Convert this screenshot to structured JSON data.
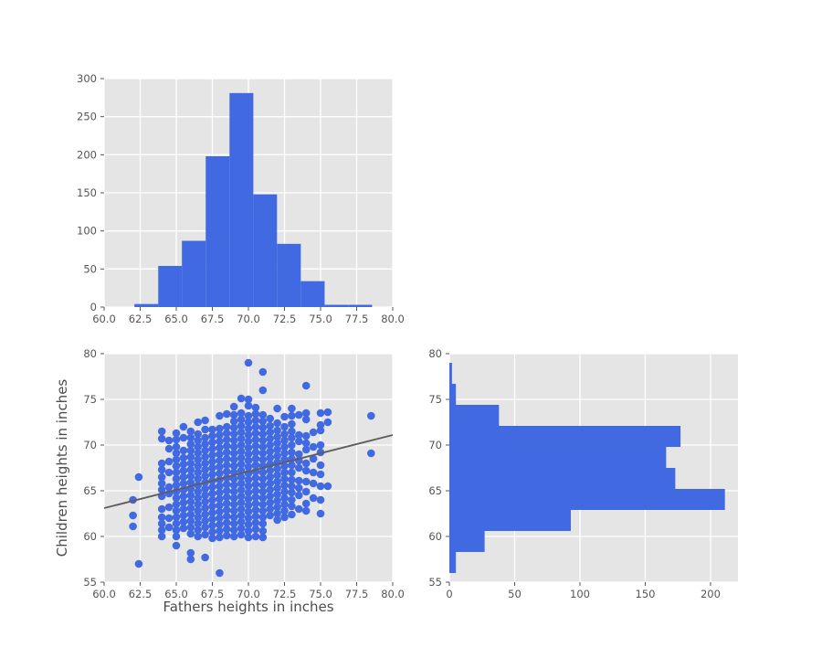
{
  "figure": {
    "background": "#ffffff",
    "axes_bg": "#e5e5e5",
    "grid_color": "#ffffff",
    "tick_color": "#555555",
    "label_color": "#4d4d4d",
    "accent_blue": "#4169e1",
    "line_gray": "#5e5e5e"
  },
  "chart_data": [
    {
      "id": "fathers-histogram",
      "type": "bar",
      "orientation": "vertical",
      "title": "",
      "xlabel": "",
      "ylabel": "",
      "xlim": [
        60,
        80
      ],
      "ylim": [
        0,
        300
      ],
      "xticks": [
        60,
        62.5,
        65,
        67.5,
        70,
        72.5,
        75,
        77.5,
        80
      ],
      "xtick_labels": [
        "60.0",
        "62.5",
        "65.0",
        "67.5",
        "70.0",
        "72.5",
        "75.0",
        "77.5",
        "80.0"
      ],
      "yticks": [
        0,
        50,
        100,
        150,
        200,
        250,
        300
      ],
      "ytick_labels": [
        "0",
        "50",
        "100",
        "150",
        "200",
        "250",
        "300"
      ],
      "bin_edges": [
        62.1,
        63.75,
        65.39,
        67.04,
        68.69,
        70.34,
        71.98,
        73.63,
        75.28,
        76.92,
        78.57
      ],
      "values": [
        4,
        54,
        87,
        198,
        281,
        148,
        83,
        34,
        3,
        3
      ],
      "grid": true
    },
    {
      "id": "fathers-children-scatter",
      "type": "scatter",
      "title": "",
      "xlabel": "Fathers heights in inches",
      "ylabel": "Children heights in inches",
      "xlim": [
        60,
        80
      ],
      "ylim": [
        55,
        80
      ],
      "xticks": [
        60,
        62.5,
        65,
        67.5,
        70,
        72.5,
        75,
        77.5,
        80
      ],
      "xtick_labels": [
        "60.0",
        "62.5",
        "65.0",
        "67.5",
        "70.0",
        "72.5",
        "75.0",
        "77.5",
        "80.0"
      ],
      "yticks": [
        55,
        60,
        65,
        70,
        75,
        80
      ],
      "ytick_labels": [
        "55",
        "60",
        "65",
        "70",
        "75",
        "80"
      ],
      "regression_line": {
        "x1": 60,
        "y1": 63.1,
        "x2": 80,
        "y2": 71.1
      },
      "grid": true,
      "columns": [
        {
          "x": 62,
          "ys": [
            61.1,
            62.3,
            64
          ]
        },
        {
          "x": 62.4,
          "ys": [
            57,
            66.5
          ]
        },
        {
          "x": 64,
          "ys": [
            60,
            60.7,
            61.4,
            62.1,
            63,
            64.4,
            65.1,
            65.8,
            66.5,
            67.3,
            68,
            70.7,
            71.5
          ]
        },
        {
          "x": 64.5,
          "ys": [
            61,
            62,
            63.2,
            64.7,
            65.4,
            67,
            68.2,
            69.6,
            70.5
          ]
        },
        {
          "x": 65,
          "ys": [
            59,
            60,
            60.7,
            61.4,
            62.1,
            62.8,
            63.5,
            64.2,
            64.9,
            65.6,
            66.3,
            67,
            67.7,
            68.4,
            69.1,
            69.8,
            70.6,
            71.3
          ]
        },
        {
          "x": 65.5,
          "ys": [
            60.9,
            61.6,
            62.3,
            63,
            63.7,
            64.4,
            65.1,
            65.8,
            66.5,
            67.2,
            67.9,
            68.6,
            69.4,
            70.8,
            72
          ]
        },
        {
          "x": 66,
          "ys": [
            57.5,
            58.2,
            60.3,
            61,
            61.7,
            62.4,
            63.1,
            63.8,
            64.5,
            65.2,
            65.9,
            66.6,
            67.3,
            68,
            68.7,
            69.4,
            70.1,
            70.8,
            71.5
          ]
        },
        {
          "x": 66.5,
          "ys": [
            60,
            60.7,
            61.4,
            62.1,
            62.8,
            63.5,
            64.2,
            64.9,
            65.6,
            66.3,
            67,
            67.7,
            68.4,
            69.1,
            69.8,
            70.5,
            71.2,
            72.5
          ]
        },
        {
          "x": 67,
          "ys": [
            57.7,
            60.2,
            61,
            61.7,
            62.4,
            63.1,
            63.8,
            64.5,
            65.2,
            65.9,
            66.6,
            67.3,
            68,
            68.7,
            69.4,
            70.1,
            70.8,
            71.7,
            72.7
          ]
        },
        {
          "x": 67.5,
          "ys": [
            59.8,
            60.5,
            61.2,
            61.9,
            62.6,
            63.3,
            64,
            64.7,
            65.4,
            66.1,
            66.8,
            67.5,
            68.2,
            68.9,
            69.6,
            70.3,
            71,
            71.7
          ]
        },
        {
          "x": 68,
          "ys": [
            56,
            59.9,
            60.6,
            61.3,
            62,
            62.7,
            63.4,
            64.1,
            64.8,
            65.5,
            66.2,
            66.9,
            67.6,
            68.3,
            69,
            69.7,
            70.4,
            71.1,
            71.8,
            73.2
          ]
        },
        {
          "x": 68.5,
          "ys": [
            60.1,
            60.8,
            61.5,
            62.2,
            62.9,
            63.6,
            64.3,
            65,
            65.7,
            66.4,
            67.1,
            67.8,
            68.5,
            69.2,
            69.9,
            70.6,
            71.3,
            72,
            73.4
          ]
        },
        {
          "x": 69,
          "ys": [
            60,
            60.7,
            61.4,
            62.1,
            62.8,
            63.5,
            64.2,
            64.9,
            65.6,
            66.3,
            67,
            67.7,
            68.4,
            69.1,
            69.8,
            70.5,
            71.2,
            71.9,
            72.6,
            73.3,
            74.2
          ]
        },
        {
          "x": 69.5,
          "ys": [
            60.2,
            60.9,
            61.6,
            62.3,
            63,
            63.7,
            64.4,
            65.1,
            65.8,
            66.5,
            67.2,
            67.9,
            68.6,
            69.3,
            70,
            70.7,
            71.4,
            72.1,
            72.8,
            73.5,
            75.1
          ]
        },
        {
          "x": 70,
          "ys": [
            59.9,
            60.6,
            61.3,
            62,
            62.7,
            63.4,
            64.1,
            64.8,
            65.5,
            66.2,
            66.9,
            67.6,
            68.3,
            69,
            69.7,
            70.4,
            71.1,
            71.8,
            72.5,
            73.2,
            74.3,
            75,
            79
          ]
        },
        {
          "x": 70.5,
          "ys": [
            60,
            60.8,
            61.5,
            62.2,
            62.9,
            63.6,
            64.3,
            65,
            65.7,
            66.4,
            67.1,
            67.8,
            68.5,
            69.2,
            69.9,
            70.6,
            71.3,
            72,
            72.7,
            73.4,
            74.1
          ]
        },
        {
          "x": 71,
          "ys": [
            59.9,
            60.6,
            61.4,
            62.1,
            62.8,
            63.5,
            64.2,
            64.9,
            65.6,
            66.3,
            67,
            67.7,
            68.4,
            69.1,
            69.8,
            70.5,
            71.2,
            71.9,
            72.6,
            73.3,
            76,
            78
          ]
        },
        {
          "x": 71.5,
          "ys": [
            62.3,
            63,
            63.7,
            64.4,
            65.1,
            65.8,
            66.5,
            67.2,
            67.9,
            68.6,
            69.3,
            70,
            70.7,
            71.4,
            72.1,
            72.9
          ]
        },
        {
          "x": 72,
          "ys": [
            61.8,
            62.5,
            63.2,
            63.9,
            64.6,
            65.3,
            66,
            66.7,
            67.4,
            68.1,
            68.8,
            69.5,
            70.2,
            70.9,
            71.6,
            72.4,
            74
          ]
        },
        {
          "x": 72.5,
          "ys": [
            62.1,
            62.8,
            63.5,
            64.2,
            64.9,
            65.6,
            66.3,
            67,
            67.7,
            68.4,
            69.1,
            69.8,
            70.5,
            71.2,
            72,
            73.1
          ]
        },
        {
          "x": 73,
          "ys": [
            62.4,
            63.3,
            64,
            64.8,
            65.5,
            66.2,
            67,
            67.8,
            68.5,
            69.2,
            70,
            70.8,
            71.5,
            72.3,
            73.2,
            74
          ]
        },
        {
          "x": 73.5,
          "ys": [
            63,
            64.5,
            65.3,
            66.1,
            67.5,
            68.3,
            69,
            70.4,
            71.1,
            73.3
          ]
        },
        {
          "x": 74,
          "ys": [
            62.8,
            63.6,
            64.9,
            66,
            67.2,
            68,
            69.5,
            70.2,
            71,
            72.8,
            73.5,
            76.5
          ]
        },
        {
          "x": 74.5,
          "ys": [
            64.2,
            65.8,
            67,
            68.5,
            69.8,
            71.4
          ]
        },
        {
          "x": 75,
          "ys": [
            62.5,
            64,
            65.5,
            66.8,
            67.8,
            69.2,
            70,
            71.6,
            72.2,
            73.5
          ]
        },
        {
          "x": 75.5,
          "ys": [
            65.5,
            72.5,
            73.6
          ]
        },
        {
          "x": 78.5,
          "ys": [
            69.1,
            73.2
          ]
        }
      ]
    },
    {
      "id": "children-histogram",
      "type": "bar",
      "orientation": "horizontal",
      "title": "",
      "xlabel": "",
      "ylabel": "",
      "xlim": [
        0,
        221
      ],
      "ylim": [
        55,
        80
      ],
      "xticks": [
        0,
        50,
        100,
        150,
        200
      ],
      "xtick_labels": [
        "0",
        "50",
        "100",
        "150",
        "200"
      ],
      "yticks": [
        55,
        60,
        65,
        70,
        75,
        80
      ],
      "ytick_labels": [
        "55",
        "60",
        "65",
        "70",
        "75",
        "80"
      ],
      "bin_edges": [
        56.0,
        58.3,
        60.6,
        62.9,
        65.2,
        67.5,
        69.8,
        72.1,
        74.4,
        76.7,
        79.0
      ],
      "values": [
        5,
        27,
        93,
        211,
        173,
        166,
        177,
        38,
        5,
        2
      ],
      "grid": true
    }
  ]
}
